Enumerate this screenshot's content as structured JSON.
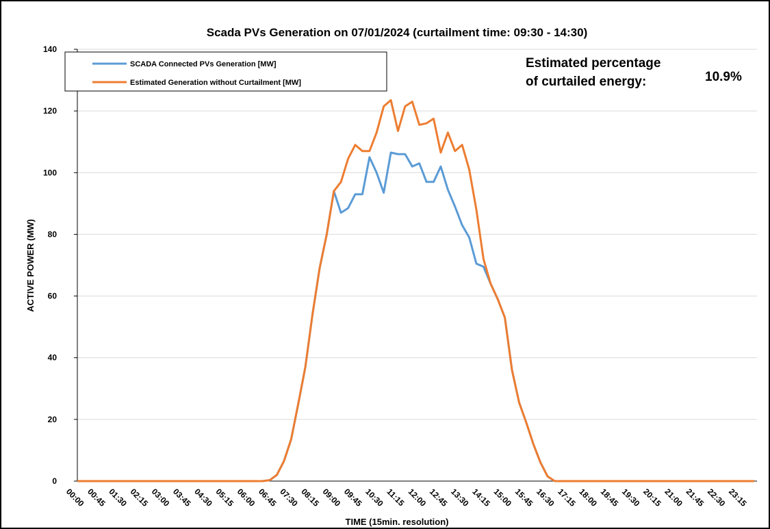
{
  "chart_data": {
    "type": "line",
    "title": "Scada PVs Generation on 07/01/2024 (curtailment time: 09:30 - 14:30)",
    "x_label": "TIME (15min. resolution)",
    "y_label": "ACTIVE POWER (MW)",
    "annotations": [
      "Estimated percentage",
      "of curtailed energy:",
      "10.9%"
    ],
    "categories": [
      "00:00",
      null,
      null,
      "00:45",
      null,
      null,
      "01:30",
      null,
      null,
      "02:15",
      null,
      null,
      "03:00",
      null,
      null,
      "03:45",
      null,
      null,
      "04:30",
      null,
      null,
      "05:15",
      null,
      null,
      "06:00",
      null,
      null,
      "06:45",
      null,
      null,
      "07:30",
      null,
      null,
      "08:15",
      null,
      null,
      "09:00",
      null,
      null,
      "09:45",
      null,
      null,
      "10:30",
      null,
      null,
      "11:15",
      null,
      null,
      "12:00",
      null,
      null,
      "12:45",
      null,
      null,
      "13:30",
      null,
      null,
      "14:15",
      null,
      null,
      "15:00",
      null,
      null,
      "15:45",
      null,
      null,
      "16:30",
      null,
      null,
      "17:15",
      null,
      null,
      "18:00",
      null,
      null,
      "18:45",
      null,
      null,
      "19:30",
      null,
      null,
      "20:15",
      null,
      null,
      "21:00",
      null,
      null,
      "21:45",
      null,
      null,
      "22:30",
      null,
      null,
      "23:15",
      null,
      null
    ],
    "series": [
      {
        "name": "SCADA Connected PVs Generation [MW]",
        "color": "#5b9bd5",
        "values": [
          0,
          0,
          0,
          0,
          0,
          0,
          0,
          0,
          0,
          0,
          0,
          0,
          0,
          0,
          0,
          0,
          0,
          0,
          0,
          0,
          0,
          0,
          0,
          0,
          0,
          0,
          0,
          0.3,
          2,
          6.5,
          13.5,
          25,
          37,
          54,
          69,
          80,
          94,
          87,
          88.5,
          93,
          93,
          105,
          100,
          93.5,
          106.5,
          106,
          106,
          102,
          103,
          97,
          97,
          102,
          94.5,
          89,
          83,
          79,
          70.5,
          69.5,
          64,
          59,
          53,
          36,
          25.5,
          19,
          12,
          6,
          1.5,
          0,
          0,
          0,
          0,
          0,
          0,
          0,
          0,
          0,
          0,
          0,
          0,
          0,
          0,
          0,
          0,
          0,
          0,
          0,
          0,
          0,
          0,
          0,
          0,
          0,
          0,
          0,
          0,
          0
        ]
      },
      {
        "name": "Estimated Generation without Curtailment [MW]",
        "color": "#ed7d31",
        "values": [
          0,
          0,
          0,
          0,
          0,
          0,
          0,
          0,
          0,
          0,
          0,
          0,
          0,
          0,
          0,
          0,
          0,
          0,
          0,
          0,
          0,
          0,
          0,
          0,
          0,
          0,
          0,
          0.3,
          2,
          6.5,
          13.5,
          25,
          37,
          54,
          69,
          80,
          94,
          97,
          104.5,
          109,
          107,
          107,
          113,
          121.5,
          123.5,
          113.5,
          121.5,
          123,
          115.5,
          116,
          117.5,
          106.5,
          113,
          107,
          109,
          101,
          88,
          72,
          64,
          59,
          53,
          36,
          25.5,
          19,
          12,
          6,
          1.5,
          0,
          0,
          0,
          0,
          0,
          0,
          0,
          0,
          0,
          0,
          0,
          0,
          0,
          0,
          0,
          0,
          0,
          0,
          0,
          0,
          0,
          0,
          0,
          0,
          0,
          0,
          0,
          0,
          0
        ]
      }
    ],
    "ylim": [
      0,
      140
    ],
    "yticks": [
      0,
      20,
      40,
      60,
      80,
      100,
      120,
      140
    ],
    "grid": true
  }
}
